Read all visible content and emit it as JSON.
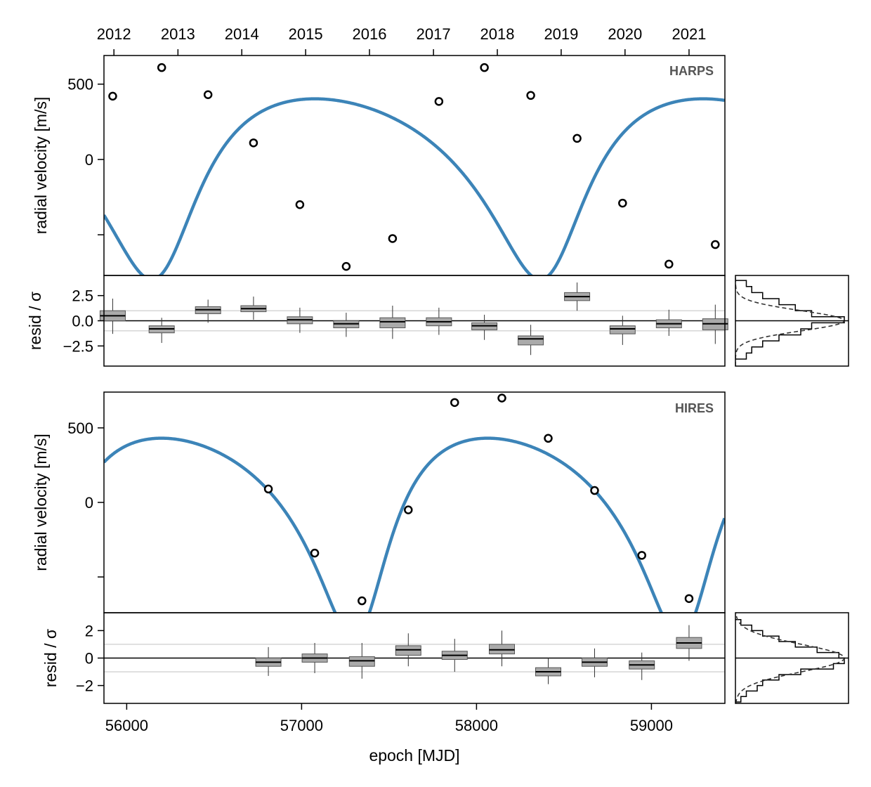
{
  "colors": {
    "model": "#1a6fac",
    "box_fill": "#aaaaaa",
    "grid": "#c8c8c8",
    "frame": "#000000",
    "label": "#555555"
  },
  "chart_data": {
    "type": "line",
    "xlabel": "epoch [MJD]",
    "xlim": [
      55870,
      59420
    ],
    "x_ticks": [
      56000,
      57000,
      58000,
      59000
    ],
    "year_ticks": [
      {
        "label": "2012",
        "mjd": 55927
      },
      {
        "label": "2013",
        "mjd": 56293
      },
      {
        "label": "2014",
        "mjd": 56658
      },
      {
        "label": "2015",
        "mjd": 57023
      },
      {
        "label": "2016",
        "mjd": 57388
      },
      {
        "label": "2017",
        "mjd": 57754
      },
      {
        "label": "2018",
        "mjd": 58119
      },
      {
        "label": "2019",
        "mjd": 58484
      },
      {
        "label": "2020",
        "mjd": 58849
      },
      {
        "label": "2021",
        "mjd": 59215
      }
    ],
    "rv_ylabel": "radial velocity [m/s]",
    "resid_ylabel": "resid / σ",
    "panels": [
      {
        "instrument": "HARPS",
        "rv_ylim": [
          -770,
          690
        ],
        "rv_ticks": [
          {
            "v": 500,
            "label": "500"
          },
          {
            "v": 0,
            "label": "0"
          },
          {
            "v": -500,
            "label": ""
          }
        ],
        "model": {
          "period": 2220,
          "epoch_min": 56200,
          "semi_amplitude": 600,
          "eccentricity": 0.35,
          "omega_deg": 200,
          "offset": 0
        },
        "observations": [
          {
            "x": 55920,
            "y": 420
          },
          {
            "x": 56200,
            "y": 610
          },
          {
            "x": 56465,
            "y": 430
          },
          {
            "x": 56725,
            "y": 110
          },
          {
            "x": 56990,
            "y": -300
          },
          {
            "x": 57255,
            "y": -710
          },
          {
            "x": 57520,
            "y": -525
          },
          {
            "x": 57785,
            "y": 385
          },
          {
            "x": 58045,
            "y": 610
          },
          {
            "x": 58310,
            "y": 425
          },
          {
            "x": 58575,
            "y": 140
          },
          {
            "x": 58835,
            "y": -290
          },
          {
            "x": 59100,
            "y": -695
          },
          {
            "x": 59365,
            "y": -565
          }
        ],
        "resid_ylim": [
          -4.5,
          4.5
        ],
        "resid_ticks": [
          {
            "v": 2.5,
            "label": "2.5"
          },
          {
            "v": 0,
            "label": "0.0"
          },
          {
            "v": -2.5,
            "label": "−2.5"
          }
        ],
        "resid_boxes": [
          {
            "x": 55920,
            "min": -1.3,
            "q1": 0.0,
            "med": 0.5,
            "q3": 1.0,
            "max": 2.2
          },
          {
            "x": 56200,
            "min": -2.2,
            "q1": -1.2,
            "med": -0.8,
            "q3": -0.5,
            "max": 0.3
          },
          {
            "x": 56465,
            "min": -0.2,
            "q1": 0.7,
            "med": 1.1,
            "q3": 1.4,
            "max": 2.1
          },
          {
            "x": 56725,
            "min": 0.1,
            "q1": 0.9,
            "med": 1.2,
            "q3": 1.5,
            "max": 2.4
          },
          {
            "x": 56990,
            "min": -1.2,
            "q1": -0.3,
            "med": 0.1,
            "q3": 0.4,
            "max": 1.3
          },
          {
            "x": 57255,
            "min": -1.6,
            "q1": -0.7,
            "med": -0.3,
            "q3": 0.0,
            "max": 0.8
          },
          {
            "x": 57520,
            "min": -1.8,
            "q1": -0.7,
            "med": -0.1,
            "q3": 0.3,
            "max": 1.5
          },
          {
            "x": 57785,
            "min": -1.4,
            "q1": -0.5,
            "med": -0.1,
            "q3": 0.3,
            "max": 1.3
          },
          {
            "x": 58045,
            "min": -1.9,
            "q1": -0.9,
            "med": -0.5,
            "q3": -0.2,
            "max": 0.6
          },
          {
            "x": 58310,
            "min": -3.4,
            "q1": -2.4,
            "med": -1.8,
            "q3": -1.5,
            "max": -0.4
          },
          {
            "x": 58575,
            "min": 1.0,
            "q1": 2.0,
            "med": 2.4,
            "q3": 2.8,
            "max": 3.8
          },
          {
            "x": 58835,
            "min": -2.4,
            "q1": -1.3,
            "med": -0.8,
            "q3": -0.5,
            "max": 0.5
          },
          {
            "x": 59100,
            "min": -1.5,
            "q1": -0.7,
            "med": -0.3,
            "q3": 0.1,
            "max": 1.1
          },
          {
            "x": 59365,
            "min": -2.3,
            "q1": -0.9,
            "med": -0.3,
            "q3": 0.2,
            "max": 1.6
          }
        ],
        "hist_edges": [
          -3.8,
          -3.2,
          -2.6,
          -2.0,
          -1.4,
          -0.8,
          -0.2,
          0.4,
          1.0,
          1.6,
          2.2,
          2.8,
          3.4,
          4.0
        ],
        "hist_counts": [
          2,
          3,
          5,
          8,
          12,
          14,
          20,
          14,
          11,
          8,
          5,
          3,
          2
        ]
      },
      {
        "instrument": "HIRES",
        "rv_ylim": [
          -740,
          740
        ],
        "rv_ticks": [
          {
            "v": 500,
            "label": "500"
          },
          {
            "v": 0,
            "label": "0"
          },
          {
            "v": -500,
            "label": ""
          }
        ],
        "model": {
          "period": 1865,
          "epoch_min": 57340,
          "semi_amplitude": 670,
          "eccentricity": 0.38,
          "omega_deg": 200,
          "offset": 0
        },
        "observations": [
          {
            "x": 56810,
            "y": 90
          },
          {
            "x": 57075,
            "y": -340
          },
          {
            "x": 57345,
            "y": -660
          },
          {
            "x": 57610,
            "y": -50
          },
          {
            "x": 57875,
            "y": 670
          },
          {
            "x": 58145,
            "y": 700
          },
          {
            "x": 58410,
            "y": 430
          },
          {
            "x": 58675,
            "y": 80
          },
          {
            "x": 58945,
            "y": -355
          },
          {
            "x": 59215,
            "y": -645
          }
        ],
        "resid_ylim": [
          -3.3,
          3.3
        ],
        "resid_ticks": [
          {
            "v": 2,
            "label": "2"
          },
          {
            "v": 0,
            "label": "0"
          },
          {
            "v": -2,
            "label": "−2"
          }
        ],
        "resid_boxes": [
          {
            "x": 56810,
            "min": -1.3,
            "q1": -0.6,
            "med": -0.3,
            "q3": 0.0,
            "max": 0.8
          },
          {
            "x": 57075,
            "min": -1.1,
            "q1": -0.3,
            "med": 0.0,
            "q3": 0.3,
            "max": 1.1
          },
          {
            "x": 57345,
            "min": -1.5,
            "q1": -0.6,
            "med": -0.2,
            "q3": 0.1,
            "max": 1.1
          },
          {
            "x": 57610,
            "min": -0.6,
            "q1": 0.2,
            "med": 0.6,
            "q3": 0.9,
            "max": 1.8
          },
          {
            "x": 57875,
            "min": -1.0,
            "q1": -0.1,
            "med": 0.2,
            "q3": 0.5,
            "max": 1.4
          },
          {
            "x": 58145,
            "min": -0.6,
            "q1": 0.3,
            "med": 0.6,
            "q3": 1.0,
            "max": 2.0
          },
          {
            "x": 58410,
            "min": -1.9,
            "q1": -1.3,
            "med": -1.0,
            "q3": -0.7,
            "max": 0.0
          },
          {
            "x": 58675,
            "min": -1.4,
            "q1": -0.6,
            "med": -0.3,
            "q3": 0.0,
            "max": 0.7
          },
          {
            "x": 58945,
            "min": -1.6,
            "q1": -0.8,
            "med": -0.5,
            "q3": -0.2,
            "max": 0.4
          },
          {
            "x": 59215,
            "min": -0.2,
            "q1": 0.7,
            "med": 1.1,
            "q3": 1.5,
            "max": 2.4
          }
        ],
        "hist_edges": [
          -3.2,
          -2.8,
          -2.4,
          -2.0,
          -1.6,
          -1.2,
          -0.8,
          -0.4,
          0.0,
          0.4,
          0.8,
          1.2,
          1.6,
          2.0,
          2.4,
          2.8
        ],
        "hist_counts": [
          1,
          2,
          4,
          5,
          8,
          12,
          18,
          20,
          19,
          15,
          11,
          8,
          5,
          3,
          1
        ]
      }
    ]
  }
}
